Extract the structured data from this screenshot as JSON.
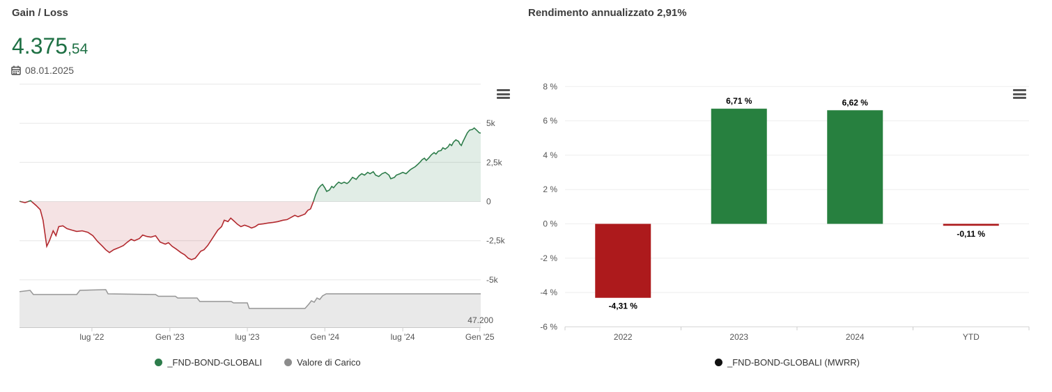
{
  "left_panel": {
    "title": "Gain / Loss",
    "value_int": "4.375",
    "value_dec": ",54",
    "value_color": "#1e7044",
    "date": "08.01.2025",
    "legend": [
      {
        "label": "_FND-BOND-GLOBALI",
        "color": "#2d7c4b"
      },
      {
        "label": "Valore di Carico",
        "color": "#8c8c8c"
      }
    ]
  },
  "right_panel": {
    "title": "Rendimento annualizzato 2,91%",
    "legend": [
      {
        "label": "_FND-BOND-GLOBALI (MWRR)",
        "color": "#111111"
      }
    ]
  },
  "chart_data": [
    {
      "type": "area",
      "title": "Gain / Loss",
      "subtitle_value": "4.375,54",
      "as_of_date": "08.01.2025",
      "x_ticks": [
        "lug '22",
        "Gen '23",
        "lug '23",
        "Gen '24",
        "lug '24",
        "Gen '25"
      ],
      "x_tick_fracs": [
        157,
        326,
        494,
        662,
        831,
        998
      ],
      "y_axis": {
        "ticks": [
          {
            "label": "",
            "v": 7500
          },
          {
            "label": "5k",
            "v": 5000
          },
          {
            "label": "2,5k",
            "v": 2500
          },
          {
            "label": "0",
            "v": 0
          },
          {
            "label": "-2,5k",
            "v": -2500
          },
          {
            "label": "-5k",
            "v": -5000
          }
        ],
        "ylim": [
          -5000,
          7500
        ]
      },
      "grid_color": "#e6e6e6",
      "series": [
        {
          "name": "_FND-BOND-GLOBALI",
          "positive_line": "#2e7d4b",
          "positive_fill": "rgba(46,125,75,0.14)",
          "negative_line": "#b2292e",
          "negative_fill": "rgba(178,41,46,0.13)",
          "points": [
            [
              0,
              20
            ],
            [
              12,
              -70
            ],
            [
              24,
              60
            ],
            [
              36,
              -250
            ],
            [
              45,
              -520
            ],
            [
              51,
              -1190
            ],
            [
              59,
              -2860
            ],
            [
              65,
              -2500
            ],
            [
              73,
              -1870
            ],
            [
              79,
              -2180
            ],
            [
              85,
              -1600
            ],
            [
              94,
              -1550
            ],
            [
              103,
              -1730
            ],
            [
              113,
              -1820
            ],
            [
              124,
              -1910
            ],
            [
              136,
              -1870
            ],
            [
              148,
              -1960
            ],
            [
              159,
              -2180
            ],
            [
              169,
              -2540
            ],
            [
              180,
              -2860
            ],
            [
              187,
              -3080
            ],
            [
              195,
              -3260
            ],
            [
              204,
              -3080
            ],
            [
              215,
              -2950
            ],
            [
              225,
              -2810
            ],
            [
              234,
              -2590
            ],
            [
              242,
              -2410
            ],
            [
              249,
              -2500
            ],
            [
              260,
              -2360
            ],
            [
              267,
              -2140
            ],
            [
              276,
              -2230
            ],
            [
              285,
              -2270
            ],
            [
              295,
              -2180
            ],
            [
              305,
              -2590
            ],
            [
              316,
              -2720
            ],
            [
              323,
              -2630
            ],
            [
              331,
              -2860
            ],
            [
              340,
              -3040
            ],
            [
              350,
              -3260
            ],
            [
              358,
              -3400
            ],
            [
              366,
              -3620
            ],
            [
              373,
              -3710
            ],
            [
              381,
              -3620
            ],
            [
              387,
              -3400
            ],
            [
              393,
              -3170
            ],
            [
              400,
              -3080
            ],
            [
              408,
              -2810
            ],
            [
              415,
              -2500
            ],
            [
              423,
              -2140
            ],
            [
              430,
              -1820
            ],
            [
              438,
              -1600
            ],
            [
              444,
              -1190
            ],
            [
              452,
              -1280
            ],
            [
              458,
              -1060
            ],
            [
              465,
              -1240
            ],
            [
              473,
              -1460
            ],
            [
              480,
              -1600
            ],
            [
              488,
              -1510
            ],
            [
              497,
              -1600
            ],
            [
              503,
              -1690
            ],
            [
              511,
              -1600
            ],
            [
              518,
              -1460
            ],
            [
              529,
              -1420
            ],
            [
              539,
              -1370
            ],
            [
              550,
              -1330
            ],
            [
              560,
              -1280
            ],
            [
              571,
              -1190
            ],
            [
              580,
              -1150
            ],
            [
              589,
              -1010
            ],
            [
              597,
              -880
            ],
            [
              604,
              -970
            ],
            [
              612,
              -880
            ],
            [
              619,
              -790
            ],
            [
              625,
              -560
            ],
            [
              631,
              -470
            ],
            [
              637,
              -20
            ],
            [
              642,
              430
            ],
            [
              648,
              830
            ],
            [
              653,
              1010
            ],
            [
              657,
              1100
            ],
            [
              662,
              880
            ],
            [
              666,
              650
            ],
            [
              672,
              740
            ],
            [
              677,
              970
            ],
            [
              681,
              880
            ],
            [
              687,
              1100
            ],
            [
              692,
              1240
            ],
            [
              698,
              1150
            ],
            [
              704,
              1240
            ],
            [
              710,
              1150
            ],
            [
              714,
              1240
            ],
            [
              722,
              1550
            ],
            [
              730,
              1420
            ],
            [
              736,
              1640
            ],
            [
              742,
              1780
            ],
            [
              748,
              1690
            ],
            [
              755,
              1870
            ],
            [
              760,
              1780
            ],
            [
              767,
              1910
            ],
            [
              772,
              1690
            ],
            [
              779,
              1600
            ],
            [
              786,
              1780
            ],
            [
              793,
              1870
            ],
            [
              801,
              1690
            ],
            [
              805,
              1460
            ],
            [
              813,
              1550
            ],
            [
              817,
              1690
            ],
            [
              825,
              1780
            ],
            [
              831,
              1870
            ],
            [
              838,
              1780
            ],
            [
              846,
              2000
            ],
            [
              850,
              2090
            ],
            [
              858,
              2230
            ],
            [
              863,
              2360
            ],
            [
              869,
              2540
            ],
            [
              873,
              2680
            ],
            [
              878,
              2770
            ],
            [
              882,
              2630
            ],
            [
              888,
              2810
            ],
            [
              893,
              2990
            ],
            [
              899,
              3130
            ],
            [
              903,
              3040
            ],
            [
              908,
              3220
            ],
            [
              914,
              3260
            ],
            [
              918,
              3440
            ],
            [
              923,
              3350
            ],
            [
              929,
              3490
            ],
            [
              933,
              3670
            ],
            [
              937,
              3580
            ],
            [
              941,
              3800
            ],
            [
              946,
              3940
            ],
            [
              952,
              3850
            ],
            [
              955,
              3670
            ],
            [
              958,
              3580
            ],
            [
              961,
              3800
            ],
            [
              967,
              4160
            ],
            [
              971,
              4390
            ],
            [
              976,
              4570
            ],
            [
              982,
              4610
            ],
            [
              986,
              4700
            ],
            [
              991,
              4570
            ],
            [
              997,
              4390
            ],
            [
              1000,
              4376
            ]
          ]
        },
        {
          "name": "Valore di Carico",
          "line_color": "#969696",
          "fill_color": "#e9e9e9",
          "end_label": "47.200",
          "points_relative": [
            [
              0,
              0.27
            ],
            [
              23,
              0.243
            ],
            [
              30,
              0.329
            ],
            [
              124,
              0.329
            ],
            [
              131,
              0.243
            ],
            [
              187,
              0.229
            ],
            [
              192,
              0.314
            ],
            [
              295,
              0.329
            ],
            [
              301,
              0.364
            ],
            [
              338,
              0.364
            ],
            [
              343,
              0.4
            ],
            [
              385,
              0.4
            ],
            [
              391,
              0.471
            ],
            [
              459,
              0.471
            ],
            [
              464,
              0.5
            ],
            [
              494,
              0.5
            ],
            [
              498,
              0.614
            ],
            [
              619,
              0.614
            ],
            [
              627,
              0.529
            ],
            [
              633,
              0.457
            ],
            [
              639,
              0.486
            ],
            [
              645,
              0.4
            ],
            [
              651,
              0.429
            ],
            [
              657,
              0.357
            ],
            [
              665,
              0.314
            ],
            [
              1000,
              0.314
            ]
          ]
        }
      ]
    },
    {
      "type": "bar",
      "title": "Rendimento annualizzato 2,91%",
      "categories": [
        "2022",
        "2023",
        "2024",
        "YTD"
      ],
      "values": [
        -4.31,
        6.71,
        6.62,
        -0.11
      ],
      "value_labels": [
        "-4,31 %",
        "6,71 %",
        "6,62 %",
        "-0,11 %"
      ],
      "bar_colors": [
        "#ad1a1c",
        "#27803f",
        "#27803f",
        "#ad1a1c"
      ],
      "y_ticks": [
        {
          "label": "8 %",
          "v": 8
        },
        {
          "label": "6 %",
          "v": 6
        },
        {
          "label": "4 %",
          "v": 4
        },
        {
          "label": "2 %",
          "v": 2
        },
        {
          "label": "0 %",
          "v": 0
        },
        {
          "label": "-2 %",
          "v": -2
        },
        {
          "label": "-4 %",
          "v": -4
        },
        {
          "label": "-6 %",
          "v": -6
        }
      ],
      "ylim": [
        -6,
        8
      ],
      "grid_color": "#eeeeee",
      "axis_color": "#d4d4d4",
      "legend": "_FND-BOND-GLOBALI (MWRR)",
      "legend_position": "bottom"
    }
  ]
}
